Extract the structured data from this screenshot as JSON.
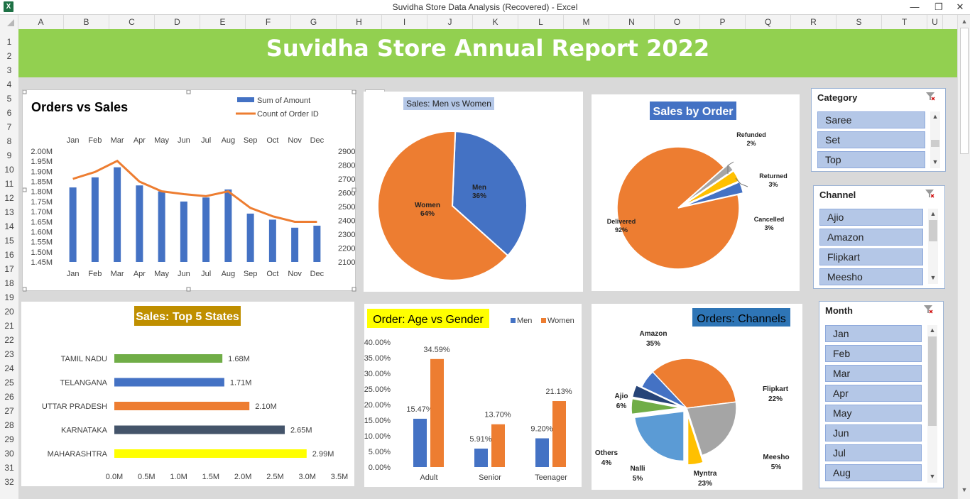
{
  "window": {
    "title": "Suvidha Store Data Analysis (Recovered) - Excel",
    "app_icon": "X",
    "minimize": "—",
    "restore": "❐",
    "close": "✕"
  },
  "columns": [
    "A",
    "B",
    "C",
    "D",
    "E",
    "F",
    "G",
    "H",
    "I",
    "J",
    "K",
    "L",
    "M",
    "N",
    "O",
    "P",
    "Q",
    "R",
    "S",
    "T",
    "U"
  ],
  "rows": [
    "1",
    "2",
    "3",
    "4",
    "5",
    "6",
    "7",
    "8",
    "9",
    "10",
    "11",
    "12",
    "13",
    "14",
    "15",
    "16",
    "17",
    "18",
    "19",
    "20",
    "21",
    "22",
    "23",
    "24",
    "25",
    "26",
    "27",
    "28",
    "29",
    "30",
    "31",
    "32"
  ],
  "report_title": "Suvidha Store Annual Report 2022",
  "colors": {
    "banner": "#92d050",
    "blue": "#4472c4",
    "orange": "#ed7d31",
    "gray": "#a5a5a5",
    "yellow": "#ffc000",
    "green": "#70ad47",
    "navy": "#264478"
  },
  "chart_tools": {
    "add_element": "+",
    "style": "brush-icon"
  },
  "chart_data": [
    {
      "type": "bar+line",
      "title": "Orders vs Sales",
      "categories": [
        "Jan",
        "Feb",
        "Mar",
        "Apr",
        "May",
        "Jun",
        "Jul",
        "Aug",
        "Sep",
        "Oct",
        "Nov",
        "Dec"
      ],
      "series": [
        {
          "name": "Sum of Amount",
          "kind": "bar",
          "axis": "left",
          "values": [
            1.82,
            1.87,
            1.92,
            1.83,
            1.8,
            1.75,
            1.77,
            1.81,
            1.69,
            1.66,
            1.62,
            1.63
          ]
        },
        {
          "name": "Count of Order ID",
          "kind": "line",
          "axis": "right",
          "values": [
            2700,
            2750,
            2830,
            2680,
            2610,
            2590,
            2575,
            2610,
            2490,
            2430,
            2390,
            2390
          ]
        }
      ],
      "y_ticks": [
        "2.00M",
        "1.95M",
        "1.90M",
        "1.85M",
        "1.80M",
        "1.75M",
        "1.70M",
        "1.65M",
        "1.60M",
        "1.55M",
        "1.50M",
        "1.45M"
      ],
      "ylim": [
        1.45,
        2.0
      ],
      "y2_ticks": [
        "2900",
        "2800",
        "2700",
        "2600",
        "2500",
        "2400",
        "2300",
        "2200",
        "2100"
      ],
      "y2lim": [
        2100,
        2900
      ]
    },
    {
      "type": "pie",
      "title": "Sales: Men vs Women",
      "slices": [
        {
          "name": "Men",
          "label": "36%",
          "value": 36
        },
        {
          "name": "Women",
          "label": "64%",
          "value": 64
        }
      ]
    },
    {
      "type": "pie",
      "title": "Sales by Order",
      "slices": [
        {
          "name": "Delivered",
          "label": "92%",
          "value": 92
        },
        {
          "name": "Refunded",
          "label": "2%",
          "value": 2
        },
        {
          "name": "Returned",
          "label": "3%",
          "value": 3
        },
        {
          "name": "Cancelled",
          "label": "3%",
          "value": 3
        }
      ]
    },
    {
      "type": "bar",
      "orientation": "horizontal",
      "title": "Sales: Top 5 States",
      "categories": [
        "TAMIL NADU",
        "TELANGANA",
        "UTTAR PRADESH",
        "KARNATAKA",
        "MAHARASHTRA"
      ],
      "values": [
        1.68,
        1.71,
        2.1,
        2.65,
        2.99
      ],
      "labels": [
        "1.68M",
        "1.71M",
        "2.10M",
        "2.65M",
        "2.99M"
      ],
      "x_ticks": [
        "0.0M",
        "0.5M",
        "1.0M",
        "1.5M",
        "2.0M",
        "2.5M",
        "3.0M",
        "3.5M"
      ],
      "xlim": [
        0,
        3.5
      ]
    },
    {
      "type": "bar",
      "title": "Order: Age vs Gender",
      "categories": [
        "Adult",
        "Senior",
        "Teenager"
      ],
      "series": [
        {
          "name": "Men",
          "values": [
            15.47,
            5.91,
            9.2
          ],
          "labels": [
            "15.47%",
            "5.91%",
            "9.20%"
          ]
        },
        {
          "name": "Women",
          "values": [
            34.59,
            13.7,
            21.13
          ],
          "labels": [
            "34.59%",
            "13.70%",
            "21.13%"
          ]
        }
      ],
      "y_ticks": [
        "40.00%",
        "35.00%",
        "30.00%",
        "25.00%",
        "20.00%",
        "15.00%",
        "10.00%",
        "5.00%",
        "0.00%"
      ],
      "ylim": [
        0,
        40
      ]
    },
    {
      "type": "pie",
      "title": "Orders: Channels",
      "slices": [
        {
          "name": "Amazon",
          "label": "35%",
          "value": 35
        },
        {
          "name": "Flipkart",
          "label": "22%",
          "value": 22
        },
        {
          "name": "Meesho",
          "label": "5%",
          "value": 5
        },
        {
          "name": "Myntra",
          "label": "23%",
          "value": 23
        },
        {
          "name": "Nalli",
          "label": "5%",
          "value": 5
        },
        {
          "name": "Others",
          "label": "4%",
          "value": 4
        },
        {
          "name": "Ajio",
          "label": "6%",
          "value": 6
        }
      ]
    }
  ],
  "slicers": {
    "category": {
      "title": "Category",
      "items": [
        "Saree",
        "Set",
        "Top"
      ]
    },
    "channel": {
      "title": "Channel",
      "items": [
        "Ajio",
        "Amazon",
        "Flipkart",
        "Meesho"
      ]
    },
    "month": {
      "title": "Month",
      "items": [
        "Jan",
        "Feb",
        "Mar",
        "Apr",
        "May",
        "Jun",
        "Jul",
        "Aug"
      ]
    }
  }
}
